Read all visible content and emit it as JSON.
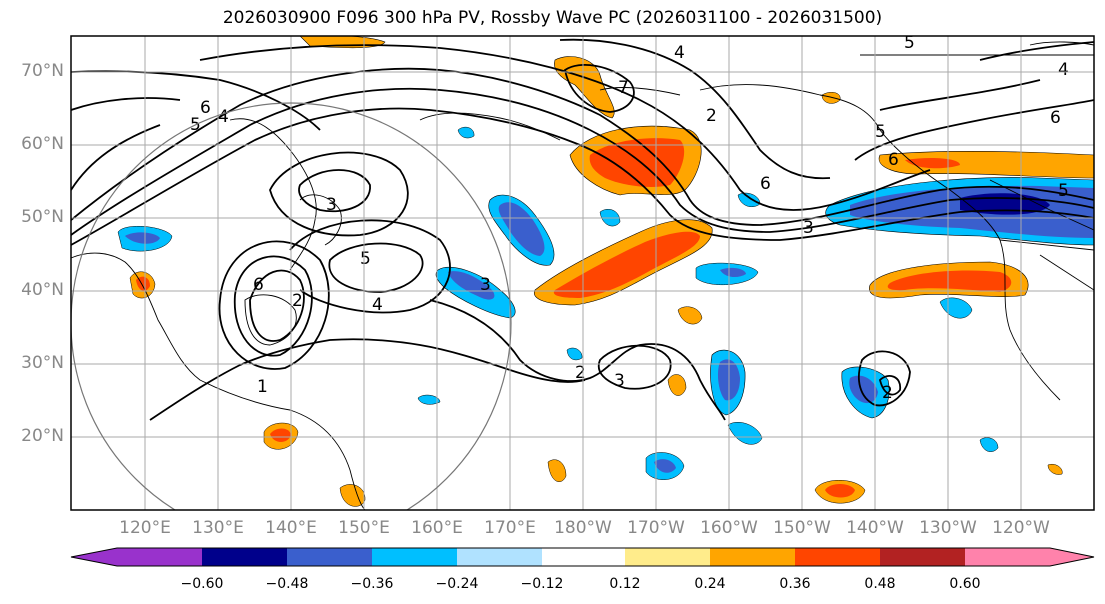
{
  "title": "2026030900 F096 300 hPa PV, Rossby Wave PC (2026031100 - 2026031500)",
  "lat_labels": [
    "70°N",
    "60°N",
    "50°N",
    "40°N",
    "30°N",
    "20°N"
  ],
  "lon_labels": [
    "120°E",
    "130°E",
    "140°E",
    "150°E",
    "160°E",
    "170°E",
    "180°W",
    "170°W",
    "160°W",
    "150°W",
    "140°W",
    "130°W",
    "120°W"
  ],
  "colorbar": {
    "colors": [
      "#9932cc",
      "#00008b",
      "#3a5fcd",
      "#00bfff",
      "#b0e2ff",
      "#ffffff",
      "#ffec8b",
      "#ffa500",
      "#ff4500",
      "#b22222",
      "#ff82ab"
    ],
    "ticks": [
      "−0.60",
      "−0.48",
      "−0.36",
      "−0.24",
      "−0.12",
      "0.12",
      "0.24",
      "0.36",
      "0.48",
      "0.60"
    ]
  },
  "contour_labels": [
    "1",
    "2",
    "3",
    "3",
    "4",
    "5",
    "6",
    "2",
    "3",
    "4",
    "5",
    "6",
    "7",
    "3",
    "5",
    "6",
    "4",
    "5",
    "6",
    "2",
    "5",
    "6",
    "4",
    "2"
  ],
  "legend_colors": {
    "frame": "#000000",
    "grid": "#aaaaaa",
    "circle": "#777777",
    "label_gray": "#888888"
  }
}
